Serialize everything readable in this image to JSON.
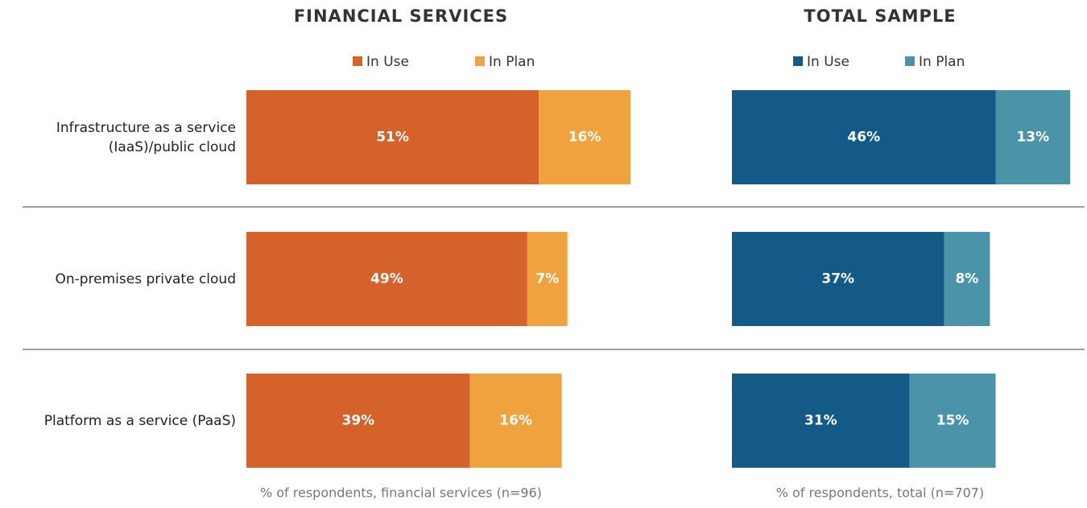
{
  "chart_data": [
    {
      "type": "stacked-barh",
      "title": "FINANCIAL SERVICES",
      "categories": [
        "Infrastructure as a service (IaaS)/public cloud",
        "On-premises private cloud",
        "Platform as a service (PaaS)"
      ],
      "series": [
        {
          "name": "In Use",
          "color": "#d4622a",
          "values": [
            51,
            49,
            39
          ],
          "value_labels": [
            "51%",
            "49%",
            "39%"
          ]
        },
        {
          "name": "In Plan",
          "color": "#f0a23e",
          "values": [
            16,
            7,
            16
          ],
          "value_labels": [
            "16%",
            "7%",
            "16%"
          ]
        }
      ],
      "note": "% of respondents, financial services (n=96)"
    },
    {
      "type": "stacked-barh",
      "title": "TOTAL SAMPLE",
      "series": [
        {
          "name": "In Use",
          "color": "#135a87",
          "values": [
            46,
            37,
            31
          ],
          "value_labels": [
            "46%",
            "37%",
            "31%"
          ]
        },
        {
          "name": "In Plan",
          "color": "#4a93a8",
          "values": [
            13,
            8,
            15
          ],
          "value_labels": [
            "13%",
            "8%",
            "15%"
          ]
        }
      ],
      "note": "% of respondents, total (n=707)"
    }
  ]
}
